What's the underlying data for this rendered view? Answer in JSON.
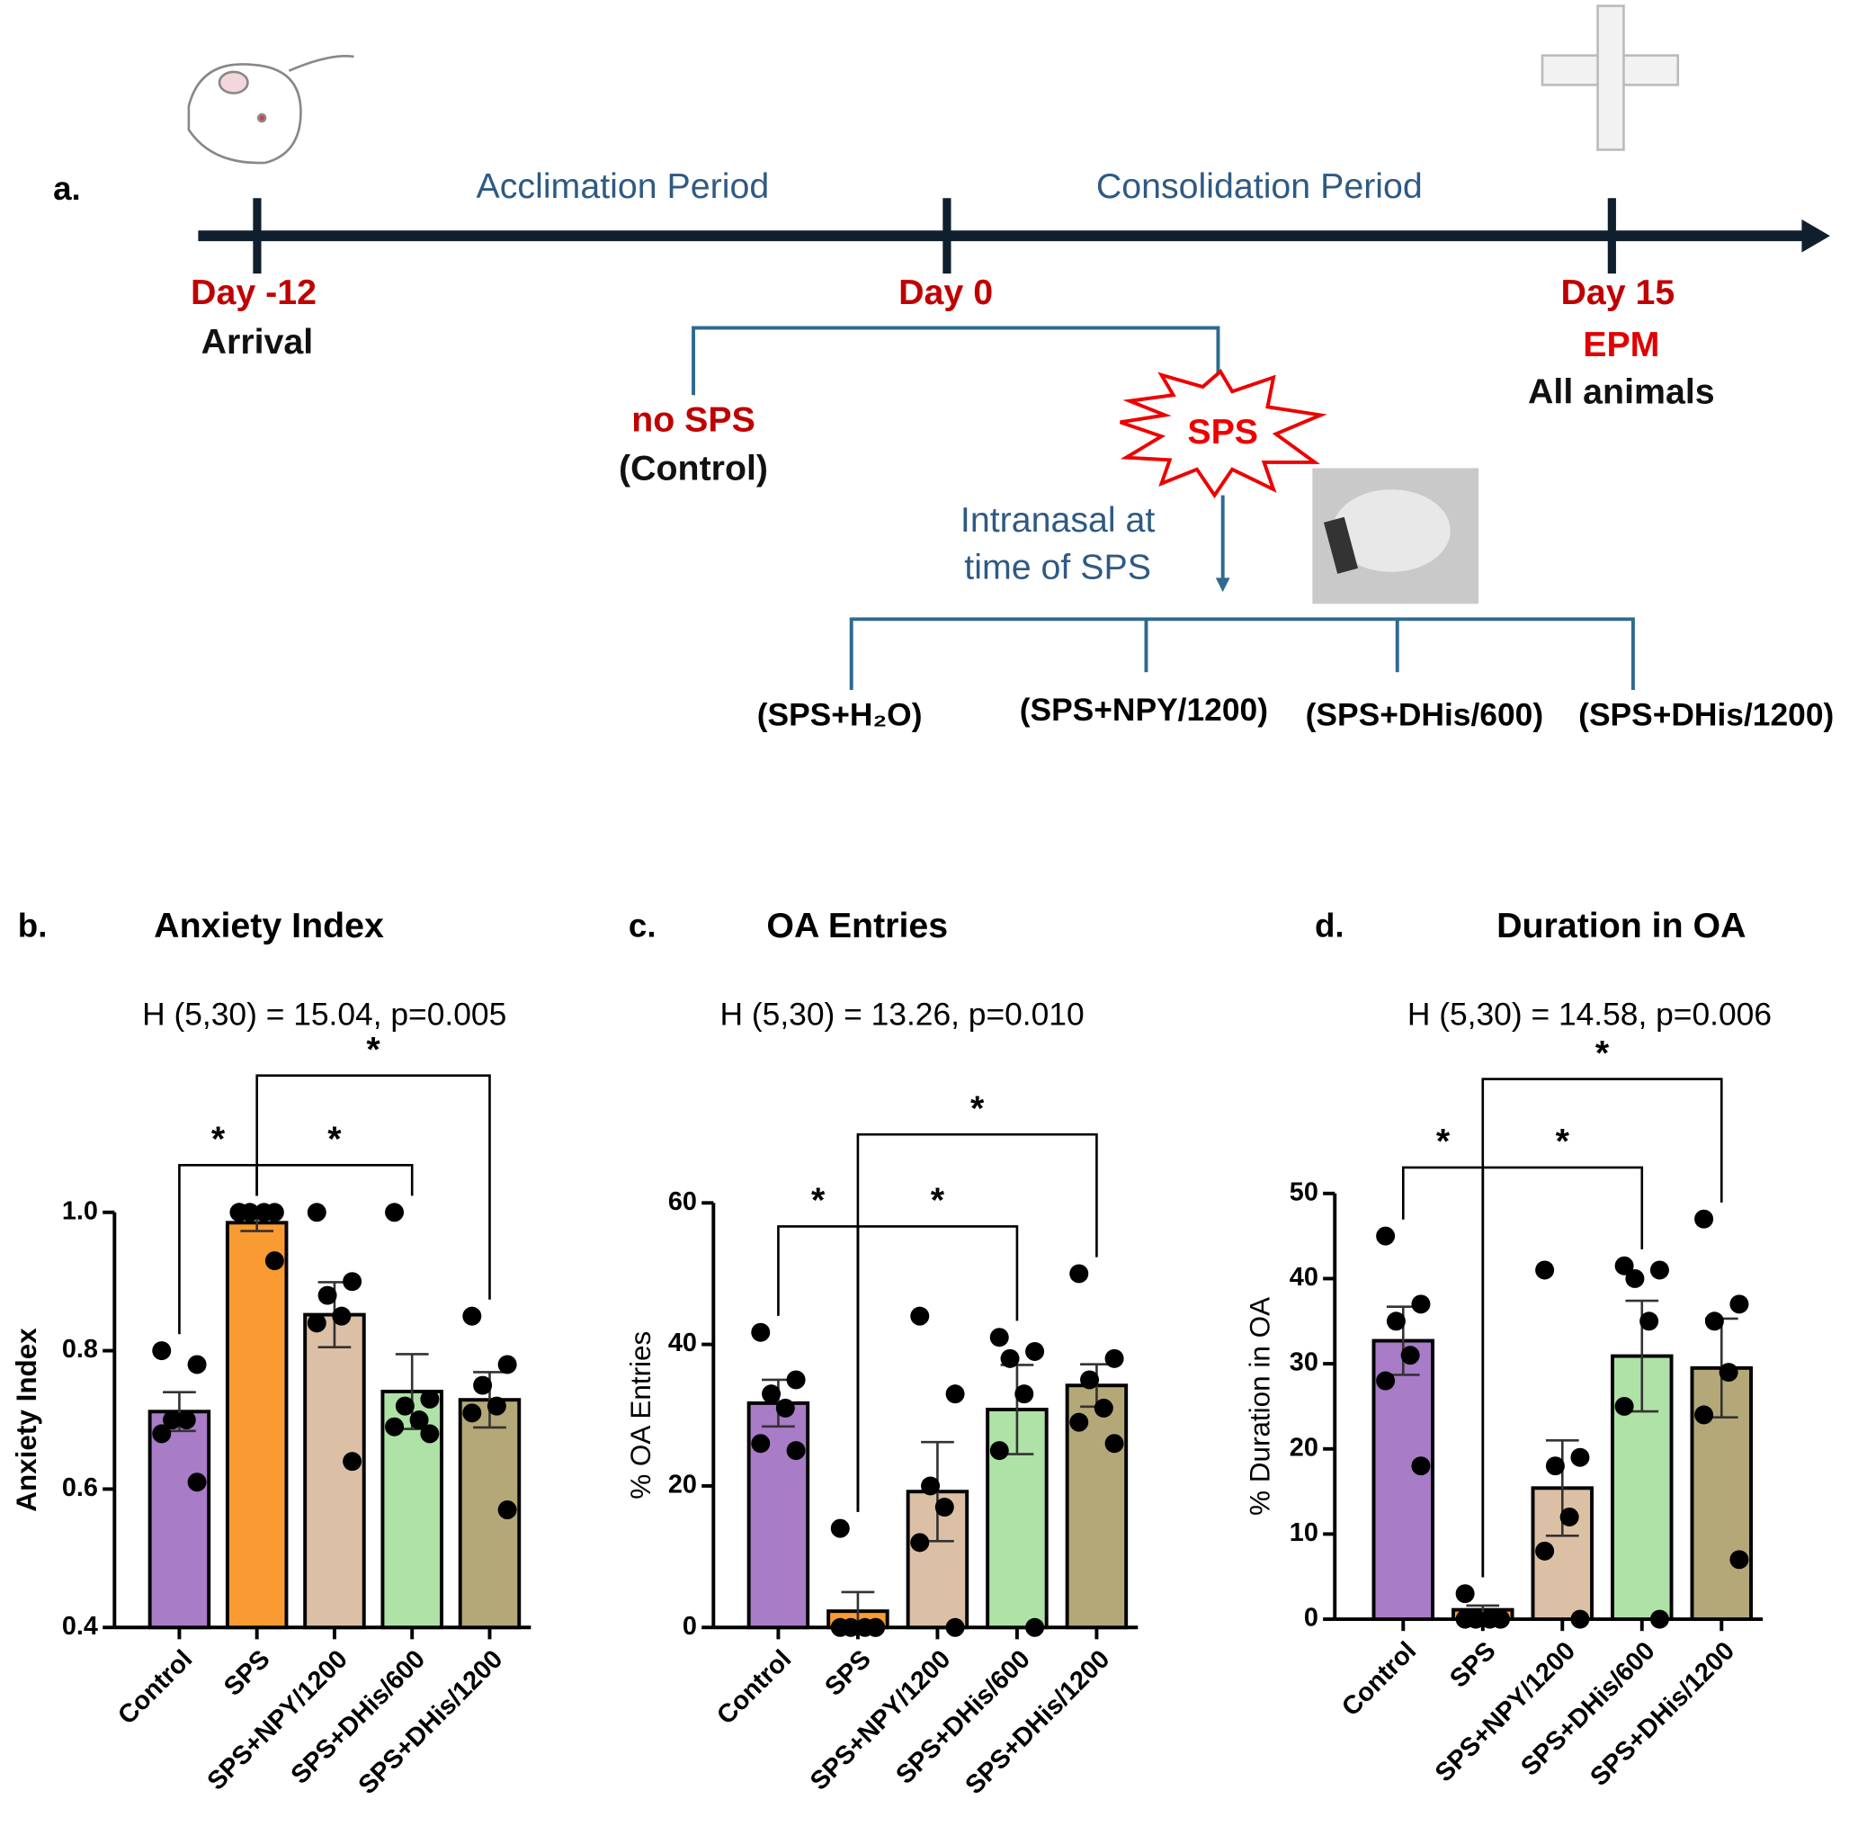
{
  "timeline": {
    "panel": "a.",
    "periods": [
      "Acclimation Period",
      "Consolidation Period"
    ],
    "days": [
      {
        "day": "Day -12",
        "note": "Arrival"
      },
      {
        "day": "Day 0"
      },
      {
        "day": "Day 15",
        "test": "EPM",
        "note": "All animals"
      }
    ],
    "control": [
      "no SPS",
      "(Control)"
    ],
    "sps": "SPS",
    "intranasal": [
      "Intranasal at",
      "time of SPS"
    ],
    "groups": [
      "(SPS+H₂O)",
      "(SPS+NPY/1200)",
      "(SPS+DHis/600)",
      "(SPS+DHis/1200)"
    ]
  },
  "chart_data": [
    {
      "type": "bar",
      "panel": "b.",
      "title": "Anxiety Index",
      "subtitle": "H (5,30) = 15.04, p=0.005",
      "ylabel": "Anxiety Index",
      "categories": [
        "Control",
        "SPS",
        "SPS+NPY/1200",
        "SPS+DHis/600",
        "SPS+DHis/1200"
      ],
      "colors": [
        "#a87cc6",
        "#f99b32",
        "#dcc0a6",
        "#afe2a6",
        "#b5a878"
      ],
      "values": [
        0.712,
        0.985,
        0.852,
        0.741,
        0.729
      ],
      "errors": [
        0.028,
        0.012,
        0.047,
        0.054,
        0.04
      ],
      "points": [
        [
          0.8,
          0.78,
          0.7,
          0.7,
          0.68,
          0.61
        ],
        [
          1,
          1,
          1,
          1,
          1,
          0.93
        ],
        [
          1,
          0.9,
          0.88,
          0.85,
          0.84,
          0.64
        ],
        [
          1,
          0.73,
          0.72,
          0.7,
          0.69,
          0.68
        ],
        [
          0.85,
          0.78,
          0.75,
          0.72,
          0.71,
          0.57
        ]
      ],
      "ylim": [
        0.4,
        1
      ],
      "yticks": [
        0.4,
        0.6,
        0.8,
        {
          "value": 1,
          "label": "1.0"
        }
      ],
      "comparisons": [
        {
          "from": "Control",
          "to": "SPS",
          "label": "*"
        },
        {
          "from": "SPS",
          "to": "SPS+DHis/600",
          "label": "*"
        },
        {
          "from": "SPS",
          "to": "SPS+DHis/1200",
          "label": "*"
        }
      ]
    },
    {
      "type": "bar",
      "panel": "c.",
      "title": "OA Entries",
      "subtitle": "H (5,30) = 13.26, p=0.010",
      "ylabel": "% OA Entries",
      "categories": [
        "Control",
        "SPS",
        "SPS+NPY/1200",
        "SPS+DHis/600",
        "SPS+DHis/1200"
      ],
      "colors": [
        "#a87cc6",
        "#f99b32",
        "#dcc0a6",
        "#afe2a6",
        "#b5a878"
      ],
      "values": [
        31.7,
        2.3,
        19.2,
        30.8,
        34.2
      ],
      "errors": [
        3.3,
        2.7,
        7,
        6.3,
        3
      ],
      "points": [
        [
          41.7,
          35,
          33,
          31,
          26,
          25
        ],
        [
          14,
          0,
          0,
          0,
          0,
          0
        ],
        [
          44,
          33,
          20,
          17,
          12,
          0
        ],
        [
          41,
          39,
          38,
          33,
          25,
          0
        ],
        [
          50,
          38,
          35,
          31,
          29,
          26
        ]
      ],
      "ylim": [
        0,
        60
      ],
      "yticks": [
        0,
        20,
        40,
        60
      ],
      "comparisons": [
        {
          "from": "Control",
          "to": "SPS",
          "label": "*"
        },
        {
          "from": "SPS",
          "to": "SPS+DHis/600",
          "label": "*"
        },
        {
          "from": "SPS",
          "to": "SPS+DHis/1200",
          "label": "*"
        }
      ]
    },
    {
      "type": "bar",
      "panel": "d.",
      "title": "Duration in OA",
      "subtitle": "H (5,30) = 14.58, p=0.006",
      "ylabel": "% Duration in OA",
      "categories": [
        "Control",
        "SPS",
        "SPS+NPY/1200",
        "SPS+DHis/600",
        "SPS+DHis/1200"
      ],
      "colors": [
        "#a87cc6",
        "#f99b32",
        "#dcc0a6",
        "#afe2a6",
        "#b5a878"
      ],
      "values": [
        32.7,
        1.1,
        15.4,
        30.9,
        29.5
      ],
      "errors": [
        4,
        0.5,
        5.6,
        6.5,
        5.8
      ],
      "points": [
        [
          45,
          37,
          35,
          31,
          28,
          18
        ],
        [
          3,
          0,
          0,
          0,
          0,
          0
        ],
        [
          41,
          19,
          18,
          12,
          8,
          0
        ],
        [
          41.5,
          41,
          40,
          35,
          25,
          0
        ],
        [
          47,
          37,
          35,
          29,
          24,
          7
        ]
      ],
      "ylim": [
        0,
        50
      ],
      "yticks": [
        0,
        10,
        20,
        30,
        40,
        50
      ],
      "comparisons": [
        {
          "from": "Control",
          "to": "SPS",
          "label": "*"
        },
        {
          "from": "SPS",
          "to": "SPS+DHis/600",
          "label": "*"
        },
        {
          "from": "SPS",
          "to": "SPS+DHis/1200",
          "label": "*"
        }
      ]
    }
  ]
}
